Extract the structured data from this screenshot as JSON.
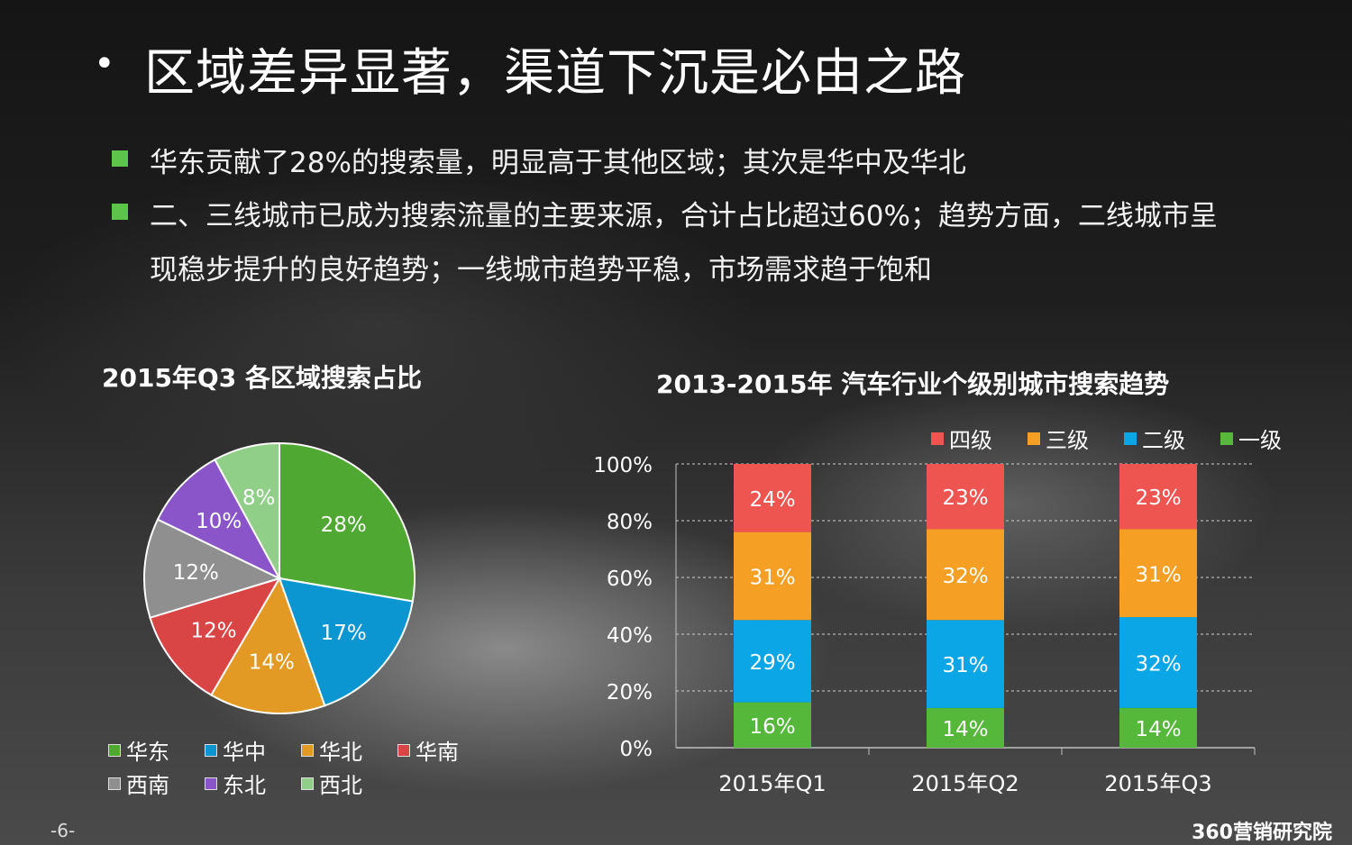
{
  "title": "区域差异显著，渠道下沉是必由之路",
  "bullets": [
    "华东贡献了28%的搜索量，明显高于其他区域；其次是华中及华北",
    "二、三线城市已成为搜索流量的主要来源，合计占比超过60%；趋势方面，二线城市呈",
    "现稳步提升的良好趋势；一线城市趋势平稳，市场需求趋于饱和"
  ],
  "footer": {
    "page": "-6-",
    "brand": "360营销研究院"
  },
  "colors": {
    "bullet": "#5ec34b"
  },
  "chart_data": [
    {
      "type": "pie",
      "title": "2015年Q3 各区域搜索占比",
      "slices": [
        {
          "name": "华东",
          "value": 28,
          "label": "28%",
          "color": "#4fa831"
        },
        {
          "name": "华中",
          "value": 17,
          "label": "17%",
          "color": "#0b96d1"
        },
        {
          "name": "华北",
          "value": 14,
          "label": "14%",
          "color": "#e39a24"
        },
        {
          "name": "华南",
          "value": 12,
          "label": "12%",
          "color": "#d94444"
        },
        {
          "name": "西南",
          "value": 12,
          "label": "12%",
          "color": "#8f8f8f"
        },
        {
          "name": "东北",
          "value": 10,
          "label": "10%",
          "color": "#8a55c9"
        },
        {
          "name": "西北",
          "value": 8,
          "label": "8%",
          "color": "#8fcf88"
        }
      ],
      "legend_placement": "bottom"
    },
    {
      "type": "bar",
      "stacked": true,
      "title": "2013-2015年 汽车行业个级别城市搜索趋势",
      "categories": [
        "2015年Q1",
        "2015年Q2",
        "2015年Q3"
      ],
      "series": [
        {
          "name": "一级",
          "values": [
            16,
            14,
            14
          ],
          "labels": [
            "16%",
            "14%",
            "14%"
          ],
          "color": "#55b83a"
        },
        {
          "name": "二级",
          "values": [
            29,
            31,
            32
          ],
          "labels": [
            "29%",
            "31%",
            "32%"
          ],
          "color": "#0aa6e6"
        },
        {
          "name": "三级",
          "values": [
            31,
            32,
            31
          ],
          "labels": [
            "31%",
            "32%",
            "31%"
          ],
          "color": "#f5a025"
        },
        {
          "name": "四级",
          "values": [
            24,
            23,
            23
          ],
          "labels": [
            "24%",
            "23%",
            "23%"
          ],
          "color": "#ee5450"
        }
      ],
      "legend_order": [
        "四级",
        "三级",
        "二级",
        "一级"
      ],
      "yticks": [
        "0%",
        "20%",
        "40%",
        "60%",
        "80%",
        "100%"
      ],
      "ylim": [
        0,
        100
      ],
      "grid": true,
      "legend_placement": "top-right"
    }
  ]
}
